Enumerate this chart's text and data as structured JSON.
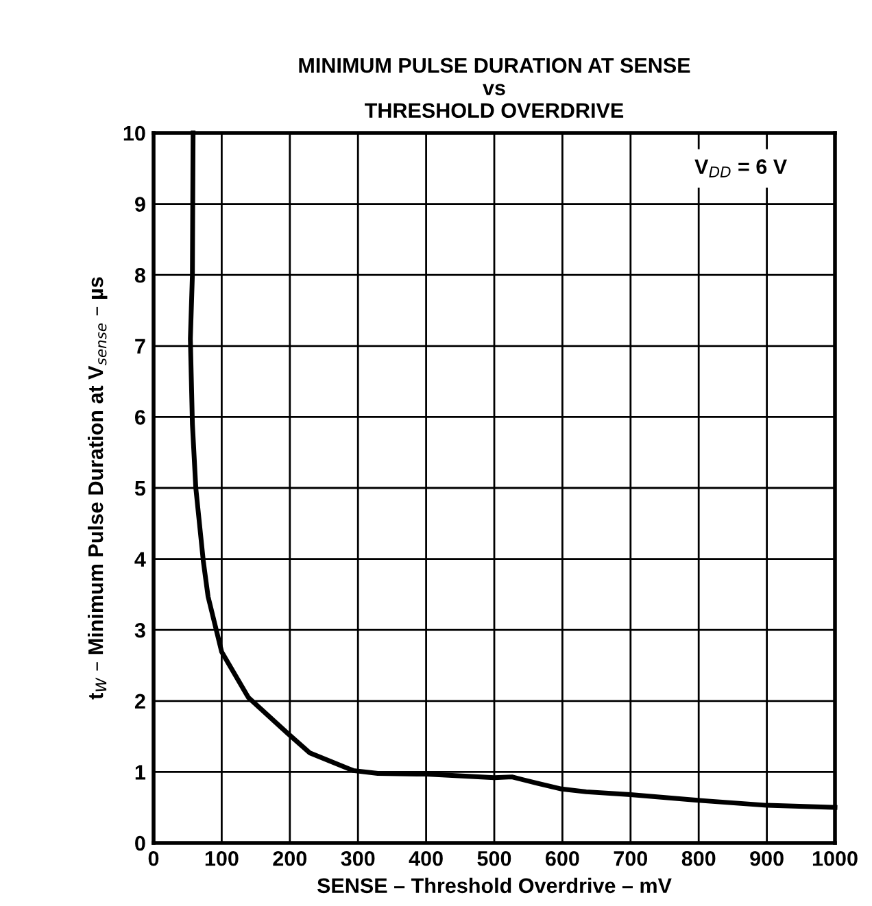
{
  "chart_data": {
    "type": "line",
    "title": "MINIMUM PULSE DURATION AT SENSE\nvs\nTHRESHOLD OVERDRIVE",
    "xlabel": "SENSE – Threshold Overdrive – mV",
    "ylabel": "t$_{W}$ – Minimum Pulse Duration at V$_{sense}$ – µs",
    "annotations": [
      "V$_{DD}$ = 6 V"
    ],
    "series": [
      {
        "color": "#000000",
        "x": [
          58,
          57,
          54,
          57,
          62,
          73,
          80,
          100,
          139,
          196,
          229,
          293,
          329,
          386,
          400,
          500,
          526,
          563,
          599,
          635,
          700,
          800,
          900,
          1000
        ],
        "values": [
          10,
          8.0,
          7.1,
          5.9,
          5.0,
          3.97,
          3.47,
          2.69,
          2.05,
          1.55,
          1.27,
          1.02,
          0.98,
          0.97,
          0.97,
          0.92,
          0.93,
          0.84,
          0.76,
          0.72,
          0.68,
          0.6,
          0.53,
          0.5
        ]
      }
    ],
    "xlim": [
      0,
      1000
    ],
    "ylim": [
      0,
      10
    ],
    "xticks": [
      0,
      100,
      200,
      300,
      400,
      500,
      600,
      700,
      800,
      900,
      1000
    ],
    "yticks": [
      0,
      1,
      2,
      3,
      4,
      5,
      6,
      7,
      8,
      9,
      10
    ],
    "grid": true,
    "marker": "none",
    "line_style": "solid",
    "legend": false
  }
}
